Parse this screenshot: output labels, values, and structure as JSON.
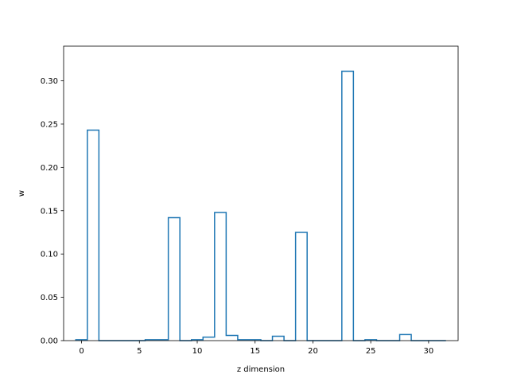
{
  "chart_data": {
    "type": "bar",
    "style": "step-histogram",
    "xlabel": "z dimension",
    "ylabel": "w",
    "xlim": [
      -1.55,
      32.55
    ],
    "ylim": [
      0,
      0.34
    ],
    "xticks": [
      0,
      5,
      10,
      15,
      20,
      25,
      30
    ],
    "yticks": [
      0.0,
      0.05,
      0.1,
      0.15,
      0.2,
      0.25,
      0.3
    ],
    "ytick_labels": [
      "0.00",
      "0.05",
      "0.10",
      "0.15",
      "0.20",
      "0.25",
      "0.30"
    ],
    "grid": false,
    "line_color": "#1f77b4",
    "categories": [
      0,
      1,
      2,
      3,
      4,
      5,
      6,
      7,
      8,
      9,
      10,
      11,
      12,
      13,
      14,
      15,
      16,
      17,
      18,
      19,
      20,
      21,
      22,
      23,
      24,
      25,
      26,
      27,
      28,
      29,
      30,
      31
    ],
    "values": [
      0.001,
      0.243,
      0.0,
      0.0,
      0.0,
      0.0,
      0.001,
      0.001,
      0.142,
      0.0,
      0.001,
      0.004,
      0.148,
      0.006,
      0.001,
      0.001,
      0.0,
      0.005,
      0.0,
      0.125,
      0.0,
      0.0,
      0.0,
      0.311,
      0.0,
      0.001,
      0.0,
      0.0,
      0.007,
      0.0,
      0.0,
      0.0
    ]
  }
}
